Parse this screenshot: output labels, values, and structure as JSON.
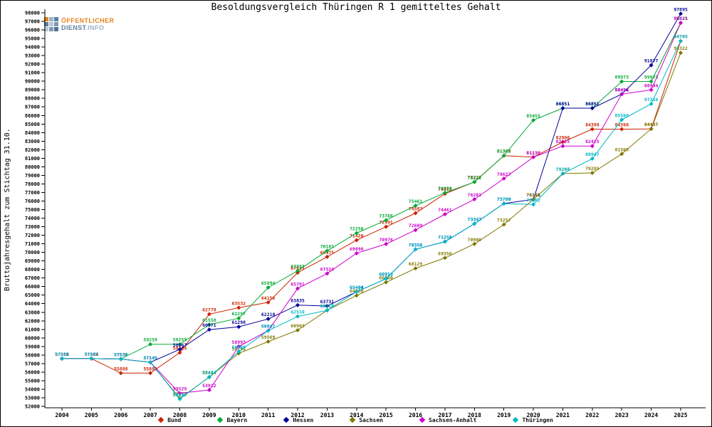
{
  "title": "Besoldungsvergleich Thüringen R 1 gemitteltes Gehalt",
  "y_axis_label": "Bruttojahresgehalt zum Stichtag 31.10.",
  "logo": {
    "line1": "ÖFFENTLICHER",
    "line2_strong": "DIENST",
    "line2_light": ".INFO",
    "brand_orange": "#e8821e",
    "brand_blue": "#5e7f9e"
  },
  "chart_data": {
    "type": "line",
    "title": "Besoldungsvergleich Thüringen R 1 gemitteltes Gehalt",
    "xlabel": "",
    "ylabel": "Bruttojahresgehalt zum Stichtag 31.10.",
    "ylim": [
      52000,
      98000
    ],
    "ytick_step": 1000,
    "grid": false,
    "legend_position": "bottom",
    "point_labels": true,
    "x": [
      2004,
      2005,
      2006,
      2007,
      2008,
      2009,
      2010,
      2011,
      2012,
      2013,
      2014,
      2015,
      2016,
      2017,
      2018,
      2019,
      2020,
      2021,
      2022,
      2023,
      2024,
      2025
    ],
    "series": [
      {
        "name": "Bund",
        "color": "#cc2200",
        "values": [
          57584,
          57584,
          55888,
          55888,
          58284,
          62779,
          63532,
          64156,
          67627,
          69475,
          71420,
          72991,
          74587,
          76851,
          78227,
          81305,
          81130,
          82906,
          84398,
          84398,
          84437,
          94705
        ]
      },
      {
        "name": "Bayern",
        "color": "#00aa33",
        "values": [
          57582,
          57582,
          57536,
          59259,
          59259,
          61558,
          62297,
          65894,
          67837,
          70181,
          72250,
          73766,
          75461,
          76970,
          78223,
          81302,
          85455,
          86851,
          86851,
          89973,
          89973,
          96825
        ]
      },
      {
        "name": "Hessen",
        "color": "#000099",
        "values": [
          57582,
          57582,
          57532,
          57145,
          58667,
          60971,
          61298,
          62218,
          63835,
          63731,
          65404,
          66916,
          70356,
          71252,
          73347,
          75709,
          76191,
          86851,
          86851,
          88494,
          91877,
          97895
        ]
      },
      {
        "name": "Sachsen",
        "color": "#807800",
        "values": [
          57582,
          57582,
          57532,
          57145,
          52938,
          55414,
          58198,
          59569,
          60903,
          63218,
          64958,
          66500,
          68129,
          69356,
          70986,
          73257,
          76198,
          79205,
          79285,
          81505,
          84437,
          93322
        ]
      },
      {
        "name": "Sachsen-Anhalt",
        "color": "#cc00cc",
        "values": [
          57582,
          57582,
          57532,
          57145,
          53529,
          53912,
          58993,
          60847,
          65781,
          67524,
          69898,
          70976,
          72609,
          74461,
          76201,
          78627,
          81130,
          82425,
          82425,
          88493,
          88994,
          96821
        ]
      },
      {
        "name": "Thüringen",
        "color": "#00b8c8",
        "values": [
          57582,
          57582,
          57532,
          57145,
          52848,
          55444,
          58408,
          60847,
          62510,
          63218,
          65406,
          66918,
          70358,
          71254,
          73342,
          75700,
          75602,
          79208,
          80947,
          85500,
          87356,
          94705
        ]
      }
    ]
  }
}
